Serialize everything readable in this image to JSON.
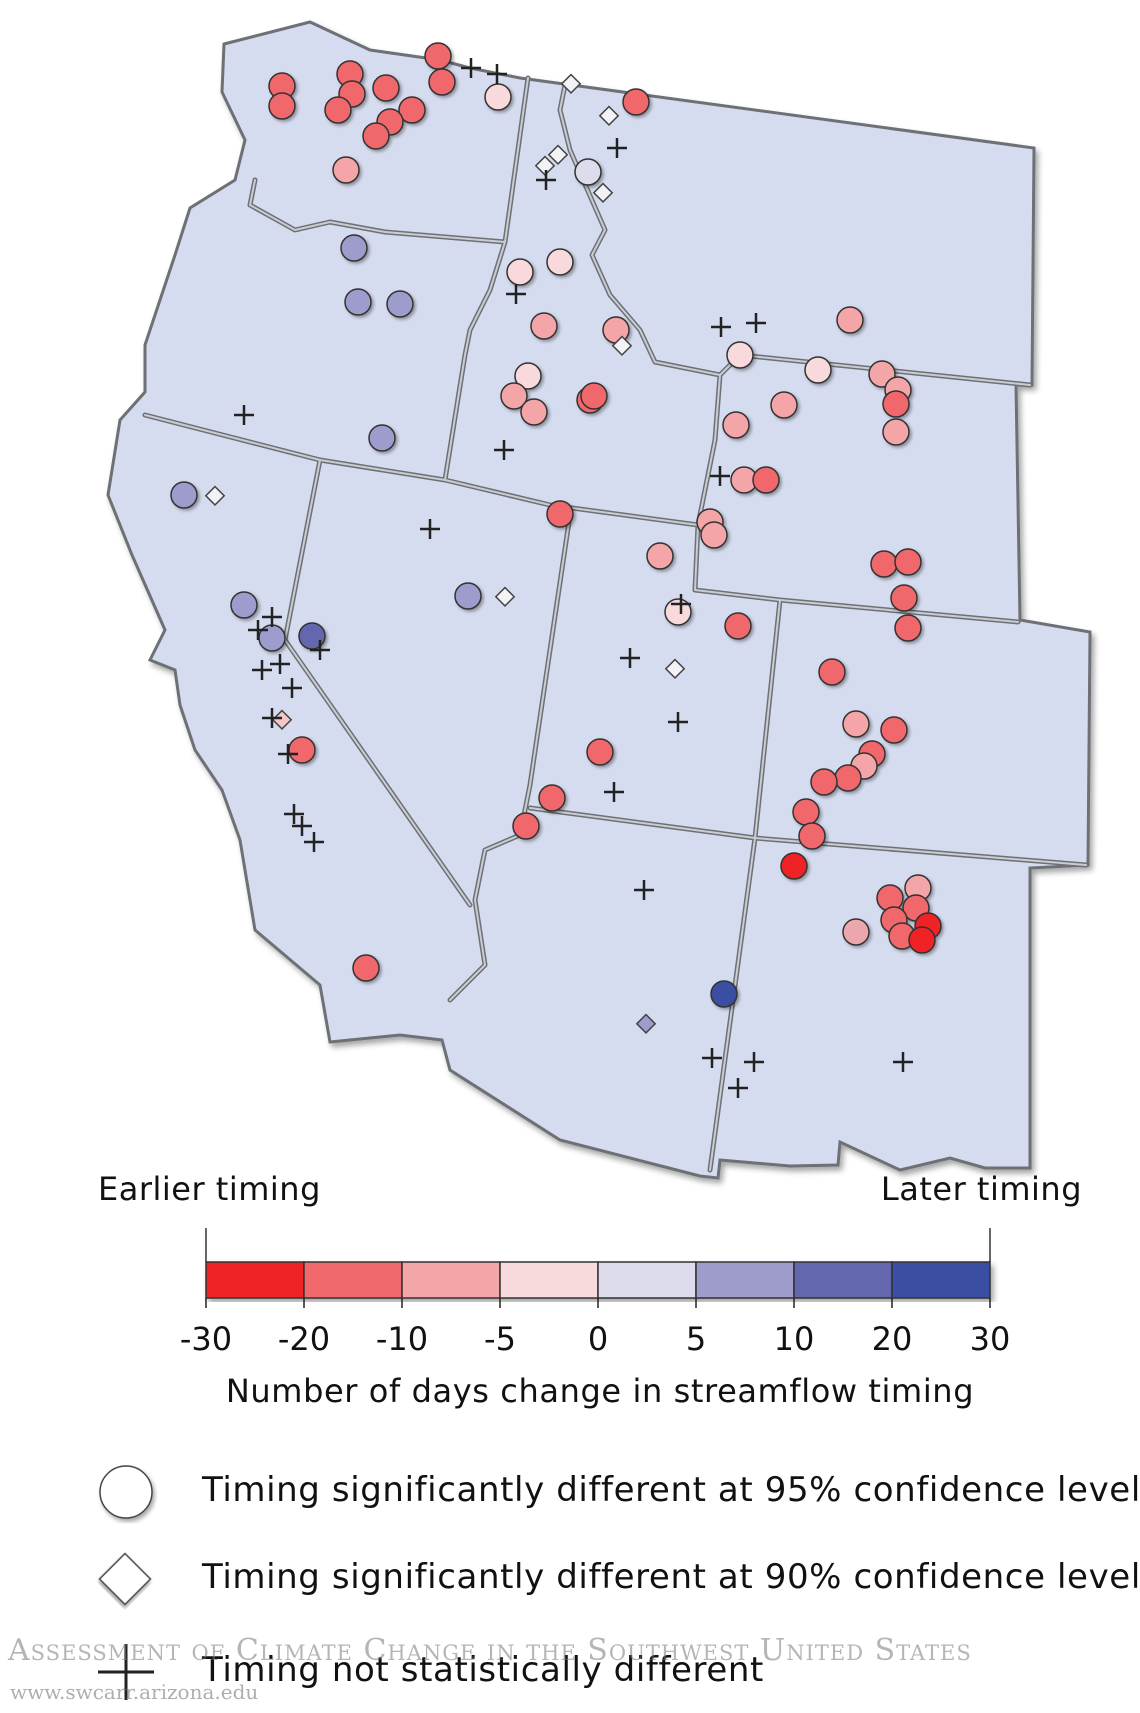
{
  "legend": {
    "left_label": "Earlier timing",
    "right_label": "Later timing",
    "axis_title": "Number of days change in streamflow timing",
    "ticks": [
      "-30",
      "-20",
      "-10",
      "-5",
      "0",
      "5",
      "10",
      "20",
      "30"
    ],
    "bins": [
      {
        "from": -30,
        "to": -20,
        "color": "#ef2328"
      },
      {
        "from": -20,
        "to": -10,
        "color": "#f0686c"
      },
      {
        "from": -10,
        "to": -5,
        "color": "#f3a5a8"
      },
      {
        "from": -5,
        "to": 0,
        "color": "#f8dadd"
      },
      {
        "from": 0,
        "to": 5,
        "color": "#dcdcec"
      },
      {
        "from": 5,
        "to": 10,
        "color": "#9e9ccc"
      },
      {
        "from": 10,
        "to": 20,
        "color": "#6467ae"
      },
      {
        "from": 20,
        "to": 30,
        "color": "#3b4fa2"
      }
    ]
  },
  "symbols": [
    {
      "shape": "circle",
      "label": "Timing significantly different at 95% confidence level"
    },
    {
      "shape": "diamond",
      "label": "Timing significantly different at 90% confidence level"
    },
    {
      "shape": "plus",
      "label": "Timing not statistically different"
    }
  ],
  "watermark": {
    "title": "Assessment of Climate Change in the Southwest United States",
    "url": "www.swcarr.arizona.edu"
  },
  "colors": {
    "land": "#d6dcef",
    "border": "#6d7075",
    "border_highlight": "#c9ccd3"
  }
}
